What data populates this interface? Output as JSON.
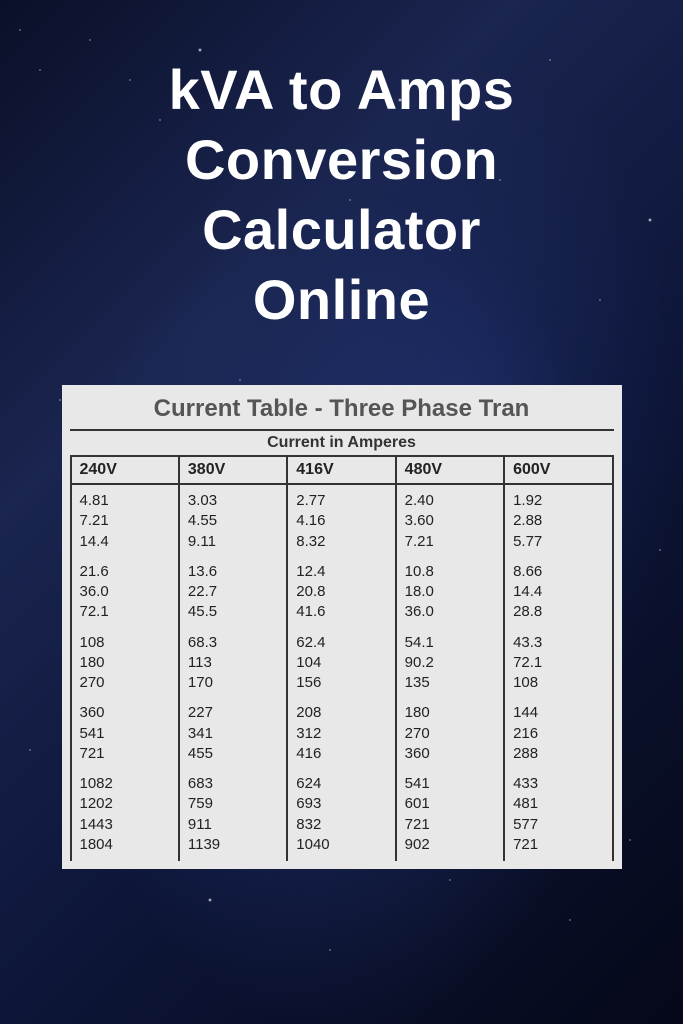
{
  "title_lines": [
    "kVA to Amps",
    "Conversion",
    "Calculator",
    "Online"
  ],
  "table": {
    "type": "table",
    "title": "Current Table - Three Phase Tran",
    "subhead": "Current in Amperes",
    "background_color": "#e8e8e8",
    "border_color": "#333333",
    "text_color": "#222222",
    "header_fontsize": 16,
    "cell_fontsize": 15,
    "title_fontsize": 24,
    "title_color": "#555555",
    "columns": [
      "240V",
      "380V",
      "416V",
      "480V",
      "600V"
    ],
    "groups": [
      [
        [
          "4.81",
          "3.03",
          "2.77",
          "2.40",
          "1.92"
        ],
        [
          "7.21",
          "4.55",
          "4.16",
          "3.60",
          "2.88"
        ],
        [
          "14.4",
          "9.11",
          "8.32",
          "7.21",
          "5.77"
        ]
      ],
      [
        [
          "21.6",
          "13.6",
          "12.4",
          "10.8",
          "8.66"
        ],
        [
          "36.0",
          "22.7",
          "20.8",
          "18.0",
          "14.4"
        ],
        [
          "72.1",
          "45.5",
          "41.6",
          "36.0",
          "28.8"
        ]
      ],
      [
        [
          "108",
          "68.3",
          "62.4",
          "54.1",
          "43.3"
        ],
        [
          "180",
          "113",
          "104",
          "90.2",
          "72.1"
        ],
        [
          "270",
          "170",
          "156",
          "135",
          "108"
        ]
      ],
      [
        [
          "360",
          "227",
          "208",
          "180",
          "144"
        ],
        [
          "541",
          "341",
          "312",
          "270",
          "216"
        ],
        [
          "721",
          "455",
          "416",
          "360",
          "288"
        ]
      ],
      [
        [
          "1082",
          "683",
          "624",
          "541",
          "433"
        ],
        [
          "1202",
          "759",
          "693",
          "601",
          "481"
        ],
        [
          "1443",
          "911",
          "832",
          "721",
          "577"
        ],
        [
          "1804",
          "1139",
          "1040",
          "902",
          "721"
        ]
      ]
    ]
  },
  "page": {
    "title_color": "#ffffff",
    "title_fontsize": 56,
    "title_fontweight": 900,
    "bg_gradient_colors": [
      "#0a1028",
      "#1a2550",
      "#0d1638",
      "#050818"
    ],
    "nebula_color": "#3c5ab4"
  }
}
